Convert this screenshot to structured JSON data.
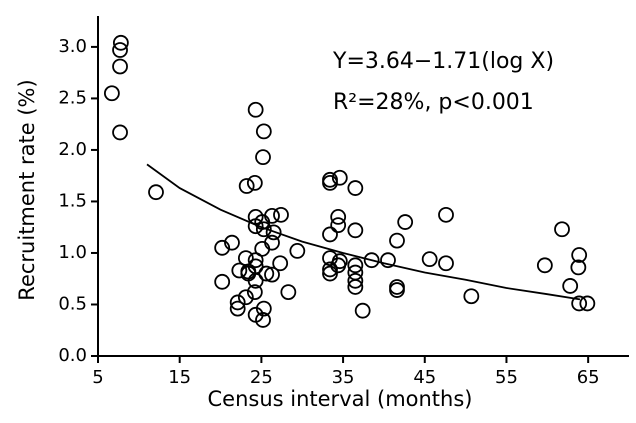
{
  "chart_data": {
    "type": "scatter",
    "xlabel": "Census interval (months)",
    "ylabel": "Recruitment rate (%)",
    "annotations": [
      "Y=3.64−1.71(log X)",
      "R²=28%, p<0.001"
    ],
    "x": [
      6.7,
      7.8,
      7.7,
      7.7,
      7.7,
      12.1,
      20.2,
      21.4,
      20.2,
      24.3,
      25.3,
      25.2,
      24.2,
      23.2,
      24.3,
      25.1,
      24.3,
      26.3,
      27.4,
      26.5,
      25.3,
      26.3,
      25.1,
      24.3,
      24.3,
      22.3,
      23.4,
      23.4,
      25.6,
      26.3,
      23.1,
      24.3,
      24.2,
      23.1,
      22.1,
      22.1,
      25.3,
      24.3,
      25.2,
      28.3,
      27.3,
      29.4,
      33.4,
      33.4,
      34.6,
      36.5,
      34.4,
      34.4,
      33.4,
      36.5,
      33.4,
      34.6,
      34.4,
      33.4,
      33.4,
      36.5,
      36.5,
      36.5,
      36.5,
      37.4,
      38.5,
      40.5,
      41.6,
      42.6,
      41.6,
      41.6,
      45.6,
      47.6,
      47.6,
      50.7,
      61.8,
      59.7,
      63.9,
      63.8,
      62.8,
      63.9,
      64.9
    ],
    "values": [
      2.55,
      3.04,
      2.97,
      2.81,
      2.17,
      1.59,
      1.05,
      1.1,
      0.72,
      2.39,
      2.18,
      1.93,
      1.68,
      1.65,
      1.35,
      1.3,
      1.26,
      1.36,
      1.37,
      1.2,
      1.23,
      1.1,
      1.04,
      0.93,
      0.87,
      0.83,
      0.8,
      0.82,
      0.8,
      0.79,
      0.95,
      0.73,
      0.62,
      0.57,
      0.52,
      0.46,
      0.46,
      0.4,
      0.35,
      0.62,
      0.9,
      1.02,
      1.71,
      1.68,
      1.73,
      1.63,
      1.35,
      1.27,
      1.18,
      1.22,
      0.95,
      0.92,
      0.88,
      0.84,
      0.8,
      0.88,
      0.81,
      0.73,
      0.67,
      0.44,
      0.93,
      0.93,
      1.12,
      1.3,
      0.67,
      0.64,
      0.94,
      1.37,
      0.9,
      0.58,
      1.23,
      0.88,
      0.98,
      0.86,
      0.68,
      0.51,
      0.51
    ],
    "fit": {
      "x": [
        11,
        15,
        20,
        25,
        30,
        35,
        40,
        45,
        50,
        55,
        60,
        64
      ],
      "values": [
        1.86,
        1.63,
        1.42,
        1.25,
        1.11,
        1.0,
        0.9,
        0.81,
        0.74,
        0.66,
        0.6,
        0.55
      ]
    },
    "color": "#000000",
    "xlim": [
      5,
      70
    ],
    "xticks": [
      5,
      15,
      25,
      35,
      45,
      55,
      65
    ],
    "ylim": [
      0,
      3.3
    ],
    "yticks": [
      {
        "value": 0,
        "label": "0.0"
      },
      0.5,
      {
        "value": 1,
        "label": "1.0"
      },
      1.5,
      {
        "value": 2,
        "label": "2.0"
      },
      2.5,
      {
        "value": 3,
        "label": "3.0"
      }
    ]
  }
}
